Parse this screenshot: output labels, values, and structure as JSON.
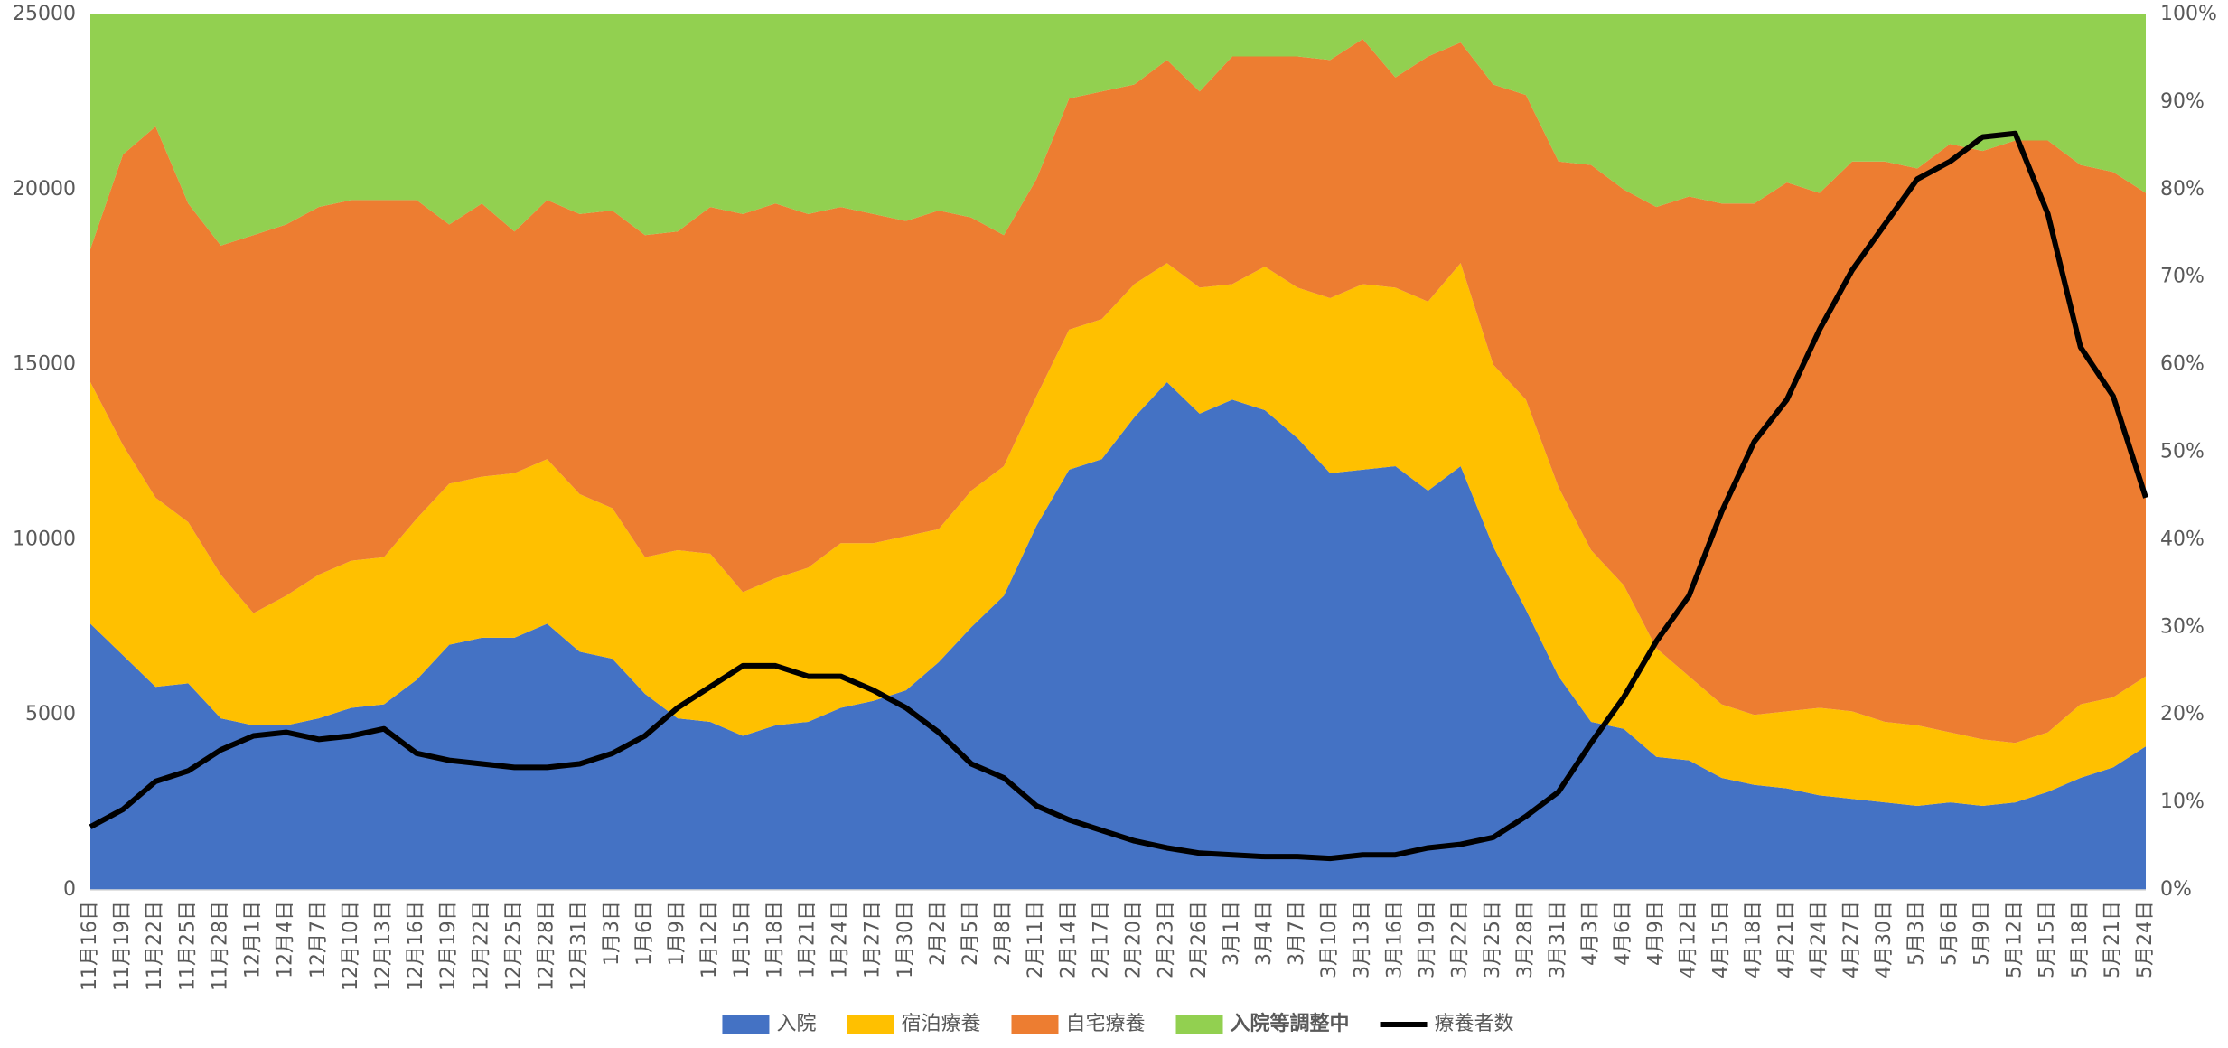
{
  "chart_data": {
    "type": "area",
    "stacked": true,
    "categories": [
      "11月16日",
      "11月19日",
      "11月22日",
      "11月25日",
      "11月28日",
      "12月1日",
      "12月4日",
      "12月7日",
      "12月10日",
      "12月13日",
      "12月16日",
      "12月19日",
      "12月22日",
      "12月25日",
      "12月28日",
      "12月31日",
      "1月3日",
      "1月6日",
      "1月9日",
      "1月12日",
      "1月15日",
      "1月18日",
      "1月21日",
      "1月24日",
      "1月27日",
      "1月30日",
      "2月2日",
      "2月5日",
      "2月8日",
      "2月11日",
      "2月14日",
      "2月17日",
      "2月20日",
      "2月23日",
      "2月26日",
      "3月1日",
      "3月4日",
      "3月7日",
      "3月10日",
      "3月13日",
      "3月16日",
      "3月19日",
      "3月22日",
      "3月25日",
      "3月28日",
      "3月31日",
      "4月3日",
      "4月6日",
      "4月9日",
      "4月12日",
      "4月15日",
      "4月18日",
      "4月21日",
      "4月24日",
      "4月27日",
      "4月30日",
      "5月3日",
      "5月6日",
      "5月9日",
      "5月12日",
      "5月15日",
      "5月18日",
      "5月21日",
      "5月24日"
    ],
    "series": [
      {
        "name": "入院",
        "color": "#4472c4",
        "axis": "y2",
        "values": [
          30.4,
          26.8,
          23.2,
          23.6,
          19.6,
          18.8,
          18.8,
          19.6,
          20.8,
          21.2,
          24.0,
          28.0,
          28.8,
          28.8,
          30.4,
          27.2,
          26.4,
          22.4,
          19.6,
          19.2,
          17.6,
          18.8,
          19.2,
          20.8,
          21.6,
          22.8,
          26.0,
          30.0,
          33.6,
          41.6,
          48.0,
          49.2,
          54.0,
          58.0,
          54.4,
          56.0,
          54.8,
          51.6,
          47.6,
          48.0,
          48.4,
          45.6,
          48.4,
          39.2,
          32.0,
          24.4,
          19.2,
          18.4,
          15.2,
          14.8,
          12.8,
          12.0,
          11.6,
          10.8,
          10.4,
          10.0,
          9.6,
          10.0,
          9.6,
          10.0,
          11.2,
          12.8,
          14.0,
          16.4
        ]
      },
      {
        "name": "宿泊療養",
        "color": "#ffc000",
        "axis": "y2",
        "values": [
          27.6,
          24.0,
          21.6,
          18.4,
          16.4,
          12.8,
          14.8,
          16.4,
          16.8,
          16.8,
          18.4,
          18.4,
          18.4,
          18.8,
          18.8,
          18.0,
          17.2,
          15.6,
          19.2,
          19.2,
          16.4,
          16.8,
          17.6,
          18.8,
          18.0,
          17.6,
          15.2,
          15.6,
          14.8,
          14.8,
          16.0,
          16.0,
          15.2,
          13.6,
          14.4,
          13.2,
          16.4,
          17.2,
          20.0,
          21.2,
          20.4,
          21.6,
          23.2,
          20.8,
          24.0,
          21.6,
          19.6,
          16.4,
          12.4,
          9.6,
          8.4,
          8.0,
          8.8,
          10.0,
          10.0,
          9.2,
          9.2,
          8.0,
          7.6,
          6.8,
          6.8,
          8.4,
          8.0,
          8.0
        ]
      },
      {
        "name": "自宅療養",
        "color": "#ed7d31",
        "axis": "y2",
        "values": [
          15.2,
          33.2,
          42.4,
          36.4,
          37.6,
          43.2,
          42.4,
          42.0,
          41.2,
          40.8,
          36.4,
          29.6,
          31.2,
          27.6,
          29.6,
          32.0,
          34.0,
          36.8,
          36.4,
          39.6,
          43.2,
          42.8,
          40.4,
          38.4,
          37.6,
          36.0,
          36.4,
          31.2,
          26.4,
          24.8,
          26.4,
          26.0,
          22.8,
          23.2,
          22.4,
          26.0,
          24.0,
          26.4,
          27.2,
          28.0,
          24.0,
          28.0,
          25.2,
          32.0,
          34.8,
          37.2,
          44.0,
          45.2,
          50.4,
          54.8,
          57.2,
          58.4,
          60.4,
          58.8,
          62.8,
          64.0,
          63.6,
          67.2,
          67.2,
          68.8,
          67.6,
          61.6,
          60.0,
          55.2
        ]
      },
      {
        "name": "入院等調整中",
        "color": "#92d050",
        "axis": "y2",
        "values": [
          26.8,
          16.0,
          12.8,
          21.6,
          26.4,
          25.2,
          24.0,
          22.0,
          21.2,
          21.2,
          21.2,
          24.0,
          21.6,
          24.8,
          21.2,
          22.8,
          22.4,
          25.2,
          24.8,
          22.0,
          22.8,
          21.6,
          22.8,
          22.0,
          22.8,
          23.6,
          22.4,
          23.2,
          25.2,
          18.8,
          9.6,
          8.8,
          8.0,
          5.2,
          8.8,
          4.8,
          4.8,
          4.8,
          5.2,
          2.8,
          7.2,
          4.8,
          3.2,
          8.0,
          9.2,
          16.8,
          17.2,
          20.0,
          22.0,
          20.8,
          21.6,
          21.6,
          19.2,
          20.4,
          16.8,
          16.8,
          17.6,
          14.8,
          15.6,
          14.4,
          14.4,
          17.2,
          18.0,
          20.4
        ]
      },
      {
        "name": "療養者数",
        "color": "#000000",
        "type": "line",
        "axis": "y",
        "values": [
          1800,
          2300,
          3100,
          3400,
          4000,
          4400,
          4500,
          4300,
          4400,
          4600,
          3900,
          3700,
          3600,
          3500,
          3500,
          3600,
          3900,
          4400,
          5200,
          5800,
          6400,
          6400,
          6100,
          6100,
          5700,
          5200,
          4500,
          3600,
          3200,
          2400,
          2000,
          1700,
          1400,
          1200,
          1050,
          1000,
          950,
          950,
          900,
          1000,
          1000,
          1200,
          1300,
          1500,
          2100,
          2800,
          4200,
          5500,
          7100,
          8400,
          10800,
          12800,
          14000,
          16000,
          17700,
          19000,
          20300,
          20800,
          21500,
          21600,
          19300,
          15500,
          14100,
          11200
        ]
      }
    ],
    "ylim": [
      0,
      25000
    ],
    "yticks": [
      0,
      5000,
      10000,
      15000,
      20000,
      25000
    ],
    "y2lim": [
      0,
      100
    ],
    "y2ticks": [
      {
        "value": 0,
        "label": "0%"
      },
      {
        "value": 10,
        "label": "10%"
      },
      {
        "value": 20,
        "label": "20%"
      },
      {
        "value": 30,
        "label": "30%"
      },
      {
        "value": 40,
        "label": "40%"
      },
      {
        "value": 50,
        "label": "50%"
      },
      {
        "value": 60,
        "label": "60%"
      },
      {
        "value": 70,
        "label": "70%"
      },
      {
        "value": 80,
        "label": "80%"
      },
      {
        "value": 90,
        "label": "90%"
      },
      {
        "value": 100,
        "label": "100%"
      }
    ],
    "grid": false,
    "legend": "bottom"
  }
}
